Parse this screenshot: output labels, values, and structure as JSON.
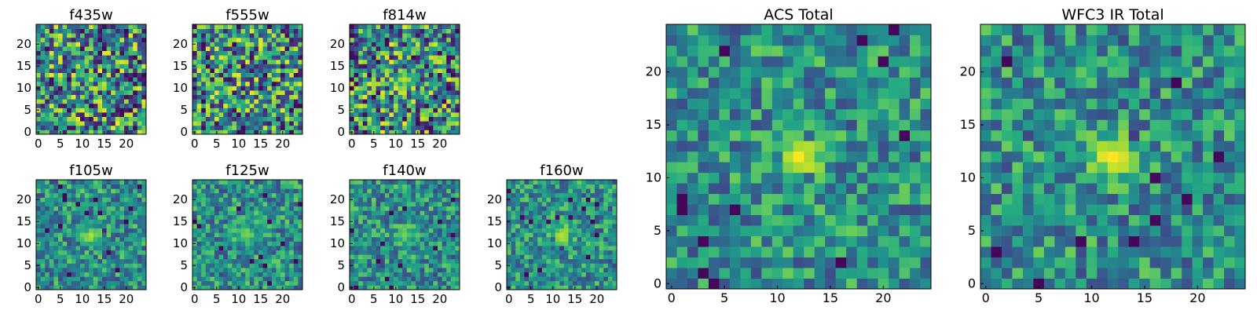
{
  "chart_data": [
    {
      "type": "heatmap",
      "id": "f435w",
      "title": "f435w",
      "grid_size": 25,
      "colormap": "viridis",
      "xticks": [
        "0",
        "5",
        "10",
        "15",
        "20"
      ],
      "yticks": [
        "0",
        "5",
        "10",
        "15",
        "20"
      ],
      "source": null
    },
    {
      "type": "heatmap",
      "id": "f555w",
      "title": "f555w",
      "grid_size": 25,
      "colormap": "viridis",
      "xticks": [
        "0",
        "5",
        "10",
        "15",
        "20"
      ],
      "yticks": [
        "0",
        "5",
        "10",
        "15",
        "20"
      ],
      "source": null
    },
    {
      "type": "heatmap",
      "id": "f814w",
      "title": "f814w",
      "grid_size": 25,
      "colormap": "viridis",
      "xticks": [
        "0",
        "5",
        "10",
        "15",
        "20"
      ],
      "yticks": [
        "0",
        "5",
        "10",
        "15",
        "20"
      ],
      "source": {
        "x": 12,
        "y": 12,
        "peak": 0.9
      }
    },
    {
      "type": "heatmap",
      "id": "f105w",
      "title": "f105w",
      "grid_size": 25,
      "colormap": "viridis",
      "xticks": [
        "0",
        "5",
        "10",
        "15",
        "20"
      ],
      "yticks": [
        "0",
        "5",
        "10",
        "15",
        "20"
      ],
      "source": {
        "x": 12,
        "y": 12,
        "peak": 0.9
      }
    },
    {
      "type": "heatmap",
      "id": "f125w",
      "title": "f125w",
      "grid_size": 25,
      "colormap": "viridis",
      "xticks": [
        "0",
        "5",
        "10",
        "15",
        "20"
      ],
      "yticks": [
        "0",
        "5",
        "10",
        "15",
        "20"
      ],
      "source": {
        "x": 12,
        "y": 12,
        "peak": 0.8
      }
    },
    {
      "type": "heatmap",
      "id": "f140w",
      "title": "f140w",
      "grid_size": 25,
      "colormap": "viridis",
      "xticks": [
        "0",
        "5",
        "10",
        "15",
        "20"
      ],
      "yticks": [
        "0",
        "5",
        "10",
        "15",
        "20"
      ],
      "source": {
        "x": 12,
        "y": 12,
        "peak": 0.8
      }
    },
    {
      "type": "heatmap",
      "id": "f160w",
      "title": "f160w",
      "grid_size": 25,
      "colormap": "viridis",
      "xticks": [
        "0",
        "5",
        "10",
        "15",
        "20"
      ],
      "yticks": [
        "0",
        "5",
        "10",
        "15",
        "20"
      ],
      "source": {
        "x": 12,
        "y": 12,
        "peak": 0.9
      }
    },
    {
      "type": "heatmap",
      "id": "acs_total",
      "title": "ACS Total",
      "grid_size": 25,
      "colormap": "viridis",
      "xticks": [
        "0",
        "5",
        "10",
        "15",
        "20"
      ],
      "yticks": [
        "0",
        "5",
        "10",
        "15",
        "20"
      ],
      "source": {
        "x": 12,
        "y": 12,
        "peak": 1.0
      }
    },
    {
      "type": "heatmap",
      "id": "wfc3_ir_total",
      "title": "WFC3 IR Total",
      "grid_size": 25,
      "colormap": "viridis",
      "xticks": [
        "0",
        "5",
        "10",
        "15",
        "20"
      ],
      "yticks": [
        "0",
        "5",
        "10",
        "15",
        "20"
      ],
      "source": {
        "x": 12,
        "y": 12,
        "peak": 1.0
      }
    }
  ],
  "colors": {
    "viridis_low": "#440154",
    "viridis_mid": "#21918c",
    "viridis_high": "#fde725"
  }
}
